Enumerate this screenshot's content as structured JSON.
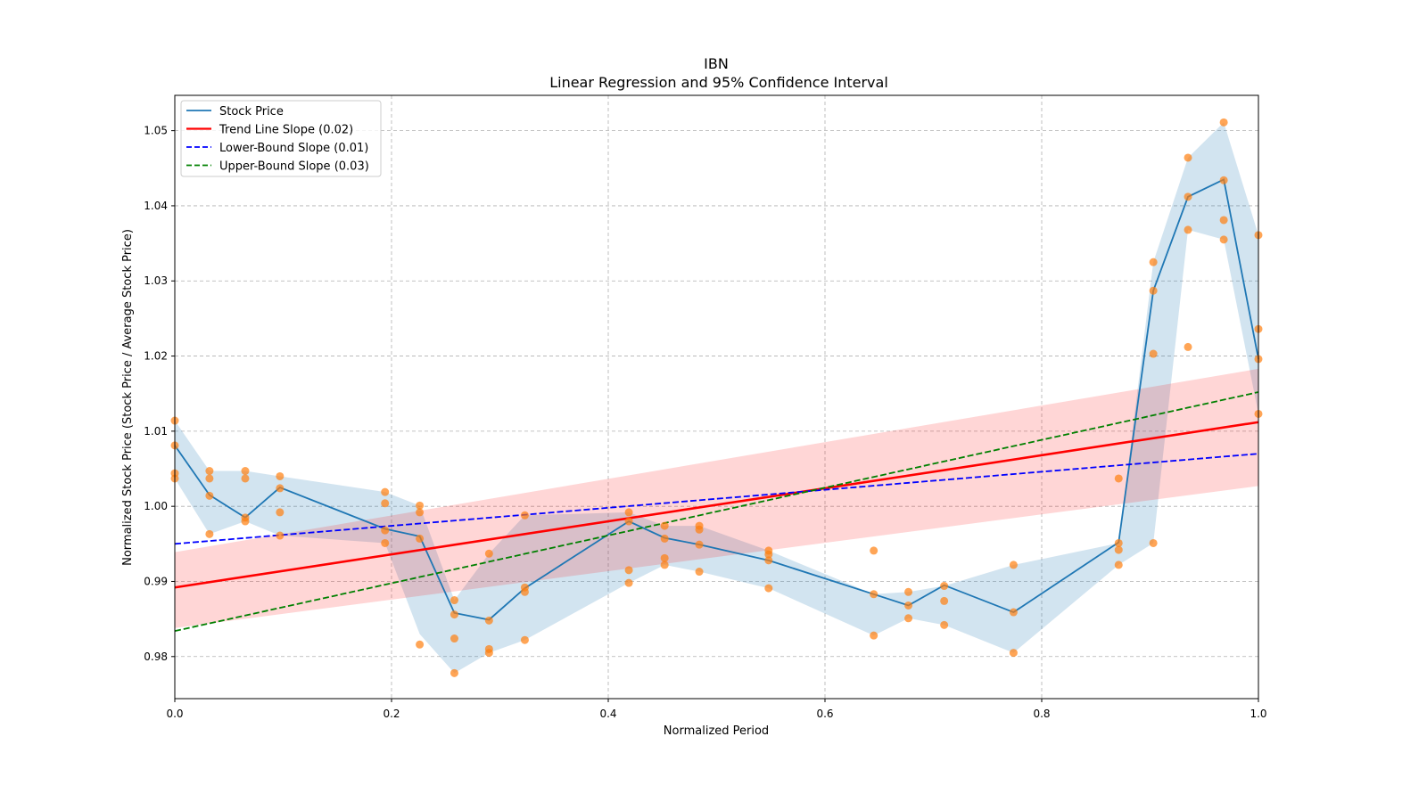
{
  "chart_data": {
    "type": "line",
    "title": "IBN",
    "subtitle": "Linear Regression and 95% Confidence Interval",
    "xlabel": "Normalized Period",
    "ylabel": "Normalized Stock Price (Stock Price / Average Stock Price)",
    "xlim": [
      0,
      1
    ],
    "ylim": [
      0.9744,
      1.0547
    ],
    "xticks": [
      "0.0",
      "0.2",
      "0.4",
      "0.6",
      "0.8",
      "1.0"
    ],
    "xtick_values": [
      0,
      0.2,
      0.4,
      0.6,
      0.8,
      1.0
    ],
    "yticks": [
      "0.98",
      "0.99",
      "1.00",
      "1.01",
      "1.02",
      "1.03",
      "1.04",
      "1.05"
    ],
    "ytick_values": [
      0.98,
      0.99,
      1.0,
      1.01,
      1.02,
      1.03,
      1.04,
      1.05
    ],
    "grid": true,
    "legend_position": "top-left",
    "legend": [
      {
        "label": "Stock Price",
        "color": "#1f77b4",
        "style": "solid"
      },
      {
        "label": "Trend Line Slope (0.02)",
        "color": "#ff0000",
        "style": "solid"
      },
      {
        "label": "Lower-Bound Slope (0.01)",
        "color": "#0000ff",
        "style": "dashed"
      },
      {
        "label": "Upper-Bound Slope (0.03)",
        "color": "#008000",
        "style": "dashed"
      }
    ],
    "stock_price": {
      "x": [
        0,
        0.032,
        0.065,
        0.097,
        0.194,
        0.226,
        0.258,
        0.29,
        0.323,
        0.419,
        0.452,
        0.484,
        0.548,
        0.645,
        0.677,
        0.71,
        0.774,
        0.871,
        0.903,
        0.935,
        0.968,
        1.0
      ],
      "y": [
        1.0081,
        1.0015,
        0.9985,
        1.0025,
        0.997,
        0.996,
        0.9858,
        0.9849,
        0.9891,
        0.998,
        0.9958,
        0.9949,
        0.9928,
        0.9883,
        0.9868,
        0.9895,
        0.9859,
        0.9952,
        1.0287,
        1.0412,
        1.0435,
        1.0196
      ],
      "ci_lower": [
        1.0037,
        0.9963,
        0.998,
        0.9961,
        0.9951,
        0.983,
        0.9778,
        0.9805,
        0.9822,
        0.9898,
        0.9922,
        0.9913,
        0.9891,
        0.9828,
        0.9851,
        0.9842,
        0.9805,
        0.9922,
        0.9951,
        1.0368,
        1.0355,
        1.0123
      ],
      "ci_upper": [
        1.0114,
        1.0047,
        1.0047,
        1.004,
        1.0019,
        1.0001,
        0.9875,
        0.9937,
        0.9988,
        0.9992,
        0.9974,
        0.9974,
        0.9941,
        0.9883,
        0.9886,
        0.9894,
        0.9922,
        0.9951,
        1.0325,
        1.0464,
        1.0511,
        1.0361
      ]
    },
    "scatter": {
      "color": "#ff7f0e",
      "points": [
        [
          0,
          1.0114
        ],
        [
          0,
          1.0081
        ],
        [
          0,
          1.0044
        ],
        [
          0,
          1.0037
        ],
        [
          0.032,
          1.0047
        ],
        [
          0.032,
          1.0037
        ],
        [
          0.032,
          1.0014
        ],
        [
          0.032,
          0.9963
        ],
        [
          0.065,
          1.0047
        ],
        [
          0.065,
          1.0037
        ],
        [
          0.065,
          0.9985
        ],
        [
          0.065,
          0.998
        ],
        [
          0.097,
          1.004
        ],
        [
          0.097,
          1.0024
        ],
        [
          0.097,
          0.9992
        ],
        [
          0.097,
          0.9961
        ],
        [
          0.194,
          1.0019
        ],
        [
          0.194,
          1.0004
        ],
        [
          0.194,
          0.9968
        ],
        [
          0.194,
          0.9951
        ],
        [
          0.226,
          1.0001
        ],
        [
          0.226,
          0.9992
        ],
        [
          0.226,
          0.9957
        ],
        [
          0.226,
          0.9816
        ],
        [
          0.258,
          0.9875
        ],
        [
          0.258,
          0.9856
        ],
        [
          0.258,
          0.9824
        ],
        [
          0.258,
          0.9778
        ],
        [
          0.29,
          0.9937
        ],
        [
          0.29,
          0.9848
        ],
        [
          0.29,
          0.981
        ],
        [
          0.29,
          0.9805
        ],
        [
          0.323,
          0.9988
        ],
        [
          0.323,
          0.9892
        ],
        [
          0.323,
          0.9886
        ],
        [
          0.323,
          0.9822
        ],
        [
          0.419,
          0.9992
        ],
        [
          0.419,
          0.998
        ],
        [
          0.419,
          0.9915
        ],
        [
          0.419,
          0.9898
        ],
        [
          0.452,
          0.9974
        ],
        [
          0.452,
          0.9957
        ],
        [
          0.452,
          0.9931
        ],
        [
          0.452,
          0.9922
        ],
        [
          0.484,
          0.9974
        ],
        [
          0.484,
          0.9969
        ],
        [
          0.484,
          0.9949
        ],
        [
          0.484,
          0.9913
        ],
        [
          0.548,
          0.9941
        ],
        [
          0.548,
          0.9936
        ],
        [
          0.548,
          0.9928
        ],
        [
          0.548,
          0.9891
        ],
        [
          0.645,
          0.9941
        ],
        [
          0.645,
          0.9883
        ],
        [
          0.645,
          0.9828
        ],
        [
          0.677,
          0.9886
        ],
        [
          0.677,
          0.9868
        ],
        [
          0.677,
          0.9851
        ],
        [
          0.71,
          0.9894
        ],
        [
          0.71,
          0.9874
        ],
        [
          0.71,
          0.9842
        ],
        [
          0.774,
          0.9922
        ],
        [
          0.774,
          0.9859
        ],
        [
          0.774,
          0.9805
        ],
        [
          0.871,
          1.0037
        ],
        [
          0.871,
          0.9951
        ],
        [
          0.871,
          0.9942
        ],
        [
          0.871,
          0.9922
        ],
        [
          0.903,
          1.0325
        ],
        [
          0.903,
          1.0287
        ],
        [
          0.903,
          1.0203
        ],
        [
          0.903,
          0.9951
        ],
        [
          0.935,
          1.0464
        ],
        [
          0.935,
          1.0412
        ],
        [
          0.935,
          1.0368
        ],
        [
          0.935,
          1.0212
        ],
        [
          0.968,
          1.0511
        ],
        [
          0.968,
          1.0434
        ],
        [
          0.968,
          1.0381
        ],
        [
          0.968,
          1.0355
        ],
        [
          1.0,
          1.0361
        ],
        [
          1.0,
          1.0236
        ],
        [
          1.0,
          1.0196
        ],
        [
          1.0,
          1.0123
        ]
      ]
    },
    "trend_line": {
      "x": [
        0,
        1
      ],
      "y": [
        0.9892,
        1.0112
      ],
      "ci_lower": [
        0.9838,
        1.0027
      ],
      "ci_upper": [
        0.9939,
        1.0183
      ],
      "color": "#ff0000",
      "band_color": "#ffcccc"
    },
    "lower_bound_line": {
      "x": [
        0,
        1
      ],
      "y": [
        0.995,
        1.007
      ],
      "color": "#0000ff"
    },
    "upper_bound_line": {
      "x": [
        0,
        1
      ],
      "y": [
        0.9834,
        1.0152
      ],
      "color": "#008000"
    }
  }
}
